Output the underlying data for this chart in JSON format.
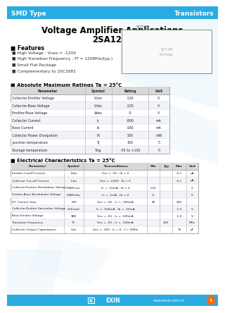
{
  "header_bg": "#29ABE2",
  "header_text_color": "#FFFFFF",
  "header_left": "SMD Type",
  "header_right": "Transistors",
  "title1": "Voltage Amplifier Applications",
  "title2": "2SA1201",
  "features_title": "Features",
  "features": [
    "High Voltage : Vceo = -120V",
    "High Transition Frequency : fT = 120MHz(typ.)",
    "Small Flat Package",
    "Complementary to 2SC2681"
  ],
  "abs_max_title": "Absolute Maximum Ratings Ta = 25°C",
  "abs_max_headers": [
    "Parameter",
    "Symbol",
    "Rating",
    "Unit"
  ],
  "abs_max_rows": [
    [
      "Collector-Emitter Voltage",
      "Vceo",
      "-120",
      "V"
    ],
    [
      "Collector-Base Voltage",
      "Vcbo",
      "-120",
      "V"
    ],
    [
      "Emitter-Base Voltage",
      "Vebo",
      "-5",
      "V"
    ],
    [
      "Collector Current",
      "Ic",
      "-800",
      "mA"
    ],
    [
      "Base Current",
      "Ib",
      "-160",
      "mA"
    ],
    [
      "Collector Power Dissipation",
      "Pc",
      "500",
      "mW"
    ],
    [
      "Junction temperature",
      "Tj",
      "150",
      "°C"
    ],
    [
      "Storage temperature",
      "Tstg",
      "-55 to +150",
      "°C"
    ]
  ],
  "elec_char_title": "Electrical Characteristics Ta = 25°C",
  "elec_headers": [
    "Parameter",
    "Symbol",
    "Testconditions",
    "Min",
    "Typ",
    "Max",
    "Unit"
  ],
  "elec_rows": [
    [
      "Emitter Cutoff Current",
      "Iebo",
      "Vce = -5V , Ib = 0",
      "",
      "",
      "-0.1",
      "μA"
    ],
    [
      "Collector Cut-off Current",
      "Icbo",
      "Vce = -120V , Ib = 0",
      "",
      "",
      "-0.1",
      "μA"
    ],
    [
      "Collector-Emitter Breakdown Voltage",
      "V(BR)ceo",
      "Ic = -10mA , Ib = 0",
      "-120",
      "",
      "",
      "V"
    ],
    [
      "Emitter-Base Breakdown Voltage",
      "V(BR)ebo",
      "Ic = -1mA , Ib = 0",
      "-5",
      "",
      "",
      "V"
    ],
    [
      "DC Current Gain",
      "hFE",
      "Vce = -5V , Ic = -100mA",
      "80",
      "",
      "240",
      ""
    ],
    [
      "Collector-Emitter Saturation Voltage",
      "VCE(sat)",
      "Ic = -500mA , Ib = -50mA",
      "",
      "",
      "-1.0",
      "V"
    ],
    [
      "Base-Emitter Voltage",
      "VBE",
      "Vce = -5V , Ic = -500mA",
      "",
      "",
      "-1.0",
      "V"
    ],
    [
      "Transition Frequency",
      "fT",
      "Vce = -5V , Ic = -100mA",
      "",
      "120",
      "",
      "MHz"
    ],
    [
      "Collector Output Capacitance",
      "Coe",
      "Vce = -10V , Ic = 0 , f = 1MHz",
      "",
      "",
      "30",
      "pF"
    ]
  ],
  "footer_bg": "#29ABE2",
  "footer_text": "www.kexin.com.cn",
  "page_bg": "#FFFFFF",
  "watermark_color": "#DAEEF8"
}
